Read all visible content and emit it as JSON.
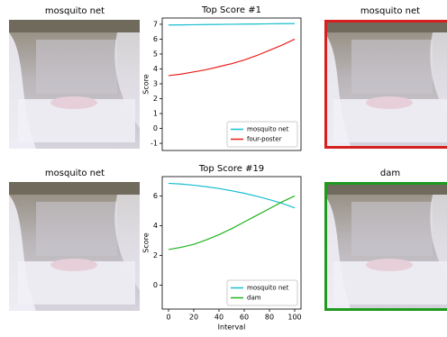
{
  "panels": [
    {
      "title": "mosquito net"
    },
    {
      "title": "mosquito net",
      "border_color": "#d62020"
    },
    {
      "title": "mosquito net"
    },
    {
      "title": "dam",
      "border_color": "#1f9a1f"
    }
  ],
  "chart_data": [
    {
      "type": "line",
      "title": "Top Score #1",
      "y_label": "Score",
      "x": [
        0,
        10,
        20,
        30,
        40,
        50,
        60,
        70,
        80,
        90,
        100
      ],
      "xlim": [
        -5,
        105
      ],
      "ylim": [
        -1.48,
        7.42
      ],
      "yticks": [
        -1,
        0,
        1,
        2,
        3,
        4,
        5,
        6,
        7
      ],
      "legend": "lower right",
      "series": [
        {
          "name": "mosquito net",
          "color": "#17becf",
          "values": [
            6.95,
            6.96,
            6.97,
            6.98,
            6.99,
            7.0,
            7.01,
            7.02,
            7.03,
            7.04,
            7.05
          ]
        },
        {
          "name": "four-poster",
          "color": "#e8211d",
          "values": [
            3.55,
            3.65,
            3.8,
            3.95,
            4.15,
            4.35,
            4.6,
            4.9,
            5.25,
            5.6,
            6.0
          ]
        }
      ]
    },
    {
      "type": "line",
      "title": "Top Score #19",
      "y_label": "Score",
      "x_label": "Interval",
      "x": [
        0,
        10,
        20,
        30,
        40,
        50,
        60,
        70,
        80,
        90,
        100
      ],
      "xlim": [
        -5,
        105
      ],
      "xticks": [
        0,
        20,
        40,
        60,
        80,
        100
      ],
      "ylim": [
        -1.6,
        7.3
      ],
      "yticks": [
        0,
        2,
        4,
        6
      ],
      "legend": "lower right",
      "series": [
        {
          "name": "mosquito net",
          "color": "#17becf",
          "values": [
            6.85,
            6.8,
            6.72,
            6.62,
            6.5,
            6.35,
            6.18,
            5.98,
            5.75,
            5.5,
            5.2
          ]
        },
        {
          "name": "dam",
          "color": "#1fb31f",
          "values": [
            2.4,
            2.55,
            2.75,
            3.05,
            3.4,
            3.8,
            4.25,
            4.7,
            5.15,
            5.6,
            6.0
          ]
        }
      ]
    }
  ]
}
